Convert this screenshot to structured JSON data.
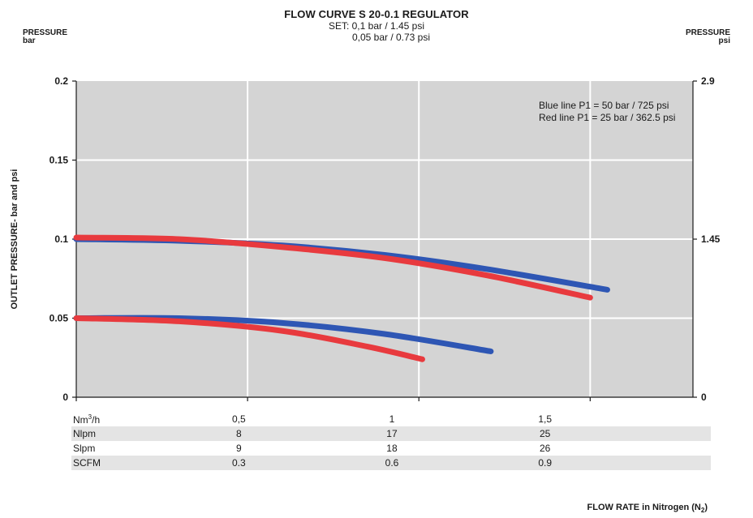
{
  "chart_data": {
    "type": "line",
    "title": "FLOW CURVE S 20-0.1 REGULATOR",
    "subtitle_lines": [
      "SET: 0,1 bar / 1.45 psi",
      "0,05 bar / 0.73 psi"
    ],
    "ylabel": "OUTLET PRESSURE- bar and psi",
    "ylabel_left_top": "PRESSURE",
    "ylabel_left_unit": "bar",
    "ylabel_right_top": "PRESSURE",
    "ylabel_right_unit": "psi",
    "xlabel_prefix": "FLOW RATE in Nitrogen (N",
    "xlabel_sub": "2",
    "xlabel_suffix": ")",
    "ylim": [
      0,
      0.2
    ],
    "xlim": [
      0,
      1.8
    ],
    "left_ticks": [
      {
        "value": 0,
        "label": "0"
      },
      {
        "value": 0.05,
        "label": "0.05"
      },
      {
        "value": 0.1,
        "label": "0.1"
      },
      {
        "value": 0.15,
        "label": "0.15"
      },
      {
        "value": 0.2,
        "label": "0.2"
      }
    ],
    "right_ticks": [
      {
        "value": 0,
        "label": "0"
      },
      {
        "value": 0.1,
        "label": "1.45"
      },
      {
        "value": 0.2,
        "label": "2.9"
      }
    ],
    "x_gridlines": [
      0.5,
      1,
      1.5
    ],
    "grid": true,
    "legend_lines": [
      "Blue line P1 = 50 bar / 725 psi",
      "Red line P1 = 25 bar / 362.5 psi"
    ],
    "series": [
      {
        "color": "#2e56b4",
        "x": [
          0,
          0.3,
          0.6,
          0.9,
          1.2,
          1.55
        ],
        "y": [
          0.1,
          0.099,
          0.096,
          0.09,
          0.081,
          0.068
        ]
      },
      {
        "color": "#e83a3e",
        "x": [
          0,
          0.3,
          0.6,
          0.9,
          1.2,
          1.5
        ],
        "y": [
          0.101,
          0.1,
          0.095,
          0.088,
          0.077,
          0.063
        ]
      },
      {
        "color": "#2e56b4",
        "x": [
          0,
          0.3,
          0.6,
          0.9,
          1.21
        ],
        "y": [
          0.05,
          0.05,
          0.047,
          0.04,
          0.029
        ]
      },
      {
        "color": "#e83a3e",
        "x": [
          0,
          0.3,
          0.6,
          0.85,
          1.01
        ],
        "y": [
          0.05,
          0.048,
          0.042,
          0.032,
          0.024
        ]
      }
    ],
    "plot_bg": "#d4d4d4"
  },
  "flow_table": {
    "unit_row": {
      "label": "Nm",
      "sup": "3",
      "suffix": "/h",
      "values": [
        "0,5",
        "1",
        "1,5"
      ]
    },
    "rows": [
      {
        "label": "Nlpm",
        "values": [
          "8",
          "17",
          "25"
        ]
      },
      {
        "label": "Slpm",
        "values": [
          "9",
          "18",
          "26"
        ]
      },
      {
        "label": "SCFM",
        "values": [
          "0.3",
          "0.6",
          "0.9"
        ]
      }
    ]
  }
}
